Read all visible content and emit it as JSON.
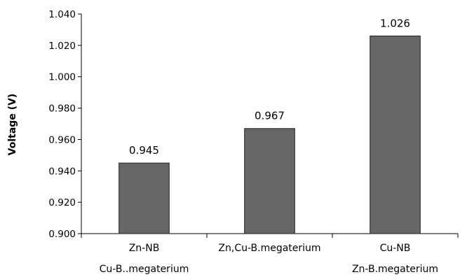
{
  "chart_data": {
    "type": "bar",
    "categories": [
      [
        "Zn-NB",
        "Cu-B..megaterium"
      ],
      [
        "Zn,Cu-B.megaterium"
      ],
      [
        "Cu-NB",
        "Zn-B.megaterium"
      ]
    ],
    "values": [
      0.945,
      0.967,
      1.026
    ],
    "data_labels": [
      "0.945",
      "0.967",
      "1.026"
    ],
    "title": "",
    "xlabel": "",
    "ylabel": "Voltage (V)",
    "ylim": [
      0.9,
      1.04
    ],
    "yticks": [
      "0.900",
      "0.920",
      "0.940",
      "0.960",
      "0.980",
      "1.000",
      "1.020",
      "1.040"
    ],
    "grid": false,
    "legend": "none",
    "bar_color": "#666666",
    "bar_edge_color": "#222222"
  }
}
